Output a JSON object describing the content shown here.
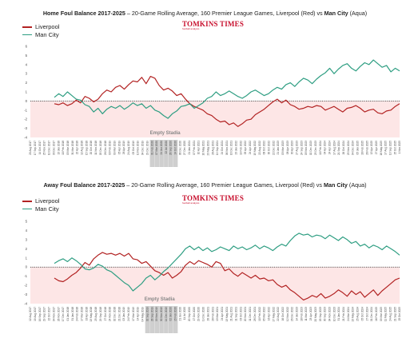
{
  "colors": {
    "liverpool": "#b22222",
    "mancity": "#2e9e82",
    "shade": "#fde6e6",
    "stadia": "#cfcfcf"
  },
  "logo": {
    "text": "TOMKINS TIMES",
    "tagline": "football analysis"
  },
  "chart_data": [
    {
      "type": "line",
      "title_bold": "Home Foul Balance 2017-2025",
      "title_rest": " – 20-Game Rolling Average, 160 Premier League Games, Liverpool (Red) vs ",
      "title_city": "Man City",
      "title_tail": " (Aqua)",
      "ylim": [
        -4,
        6
      ],
      "yticks": [
        "6",
        "5",
        "4",
        "3",
        "2",
        "1",
        "0",
        "-1",
        "-2",
        "-3",
        "-4"
      ],
      "annotation": "Empty Stadia",
      "stadia_range": [
        0.325,
        0.405
      ],
      "series": [
        {
          "name": "Liverpool",
          "color": "#b22222",
          "values": [
            -0.3,
            -0.4,
            -0.2,
            -0.5,
            -0.3,
            0.1,
            -0.2,
            0.5,
            0.3,
            -0.1,
            0.2,
            0.8,
            1.2,
            1.0,
            1.5,
            1.7,
            1.3,
            1.8,
            2.2,
            2.1,
            2.6,
            1.9,
            2.7,
            2.5,
            1.7,
            1.2,
            1.4,
            1.1,
            0.6,
            0.8,
            0.2,
            -0.3,
            -0.6,
            -0.8,
            -1.0,
            -1.4,
            -1.6,
            -2.0,
            -2.3,
            -2.2,
            -2.6,
            -2.4,
            -2.8,
            -2.5,
            -2.1,
            -2.0,
            -1.5,
            -1.2,
            -0.9,
            -0.5,
            -0.1,
            0.2,
            -0.2,
            0.1,
            -0.4,
            -0.6,
            -0.9,
            -0.8,
            -0.6,
            -0.7,
            -0.5,
            -0.6,
            -1.0,
            -0.8,
            -0.6,
            -0.9,
            -1.2,
            -0.8,
            -0.7,
            -0.5,
            -0.8,
            -1.2,
            -1.0,
            -0.9,
            -1.3,
            -1.4,
            -1.1,
            -1.0,
            -0.6,
            -0.3
          ]
        },
        {
          "name": "Man City",
          "color": "#2e9e82",
          "values": [
            0.4,
            0.8,
            0.5,
            1.0,
            0.6,
            0.2,
            0.1,
            -0.4,
            -0.6,
            -1.2,
            -0.8,
            -1.4,
            -0.9,
            -0.6,
            -0.8,
            -0.5,
            -0.9,
            -0.6,
            -0.2,
            -0.5,
            -0.3,
            -0.8,
            -0.5,
            -1.0,
            -1.2,
            -1.6,
            -1.9,
            -1.4,
            -1.1,
            -0.6,
            -0.5,
            -0.3,
            -0.8,
            -0.5,
            -0.2,
            0.3,
            0.5,
            1.0,
            0.6,
            0.8,
            1.1,
            0.8,
            0.5,
            0.3,
            0.6,
            1.0,
            1.2,
            0.9,
            0.6,
            0.8,
            1.2,
            1.5,
            1.3,
            1.8,
            2.0,
            1.6,
            2.1,
            2.5,
            2.3,
            1.9,
            2.4,
            2.8,
            3.1,
            3.6,
            3.0,
            3.5,
            3.9,
            4.1,
            3.6,
            3.3,
            3.8,
            4.2,
            4.0,
            4.5,
            4.1,
            3.7,
            3.9,
            3.2,
            3.6,
            3.3
          ]
        }
      ],
      "xticks": [
        "20 Aug 2017",
        "17 Sep 2017",
        "14 Oct 2017",
        "25 Nov 2017",
        "10 Dec 2017",
        "30 Dec 2017",
        "13 Jan 2018",
        "10 Feb 2018",
        "03 Mar 2018",
        "31 Mar 2018",
        "22 Apr 2018",
        "12 Aug 2018",
        "15 Sep 2018",
        "20 Oct 2018",
        "11 Nov 2018",
        "05 Dec 2018",
        "26 Dec 2018",
        "03 Feb 2019",
        "09 Mar 2019",
        "05 Apr 2019",
        "26 Apr 2019",
        "24 Aug 2019",
        "05 Oct 2019",
        "10 Nov 2019",
        "04 Dec 2019",
        "29 Dec 2019",
        "01 Feb 2020",
        "07 Mar 2020",
        "24 Jun 2020",
        "22 Jul 2020",
        "28 Sep 2020",
        "24 Oct 2020",
        "06 Dec 2020",
        "27 Dec 2020",
        "21 Jan 2021",
        "07 Feb 2021",
        "10 Apr 2021",
        "10 May 2021",
        "23 May 2021",
        "28 Aug 2021",
        "19 Sep 2021",
        "24 Oct 2021",
        "06 Nov 2021",
        "16 Dec 2021",
        "23 Jan 2022",
        "19 Feb 2022",
        "05 Apr 2022",
        "24 Apr 2022",
        "15 May 2022",
        "22 Aug 2022",
        "08 Oct 2022",
        "30 Oct 2022",
        "22 Dec 2022",
        "21 Jan 2023",
        "03 Mar 2023",
        "08 Apr 2023",
        "30 Apr 2023",
        "27 Aug 2023",
        "24 Sep 2023",
        "05 Nov 2023",
        "02 Dec 2023",
        "23 Dec 2023",
        "10 Feb 2024",
        "04 Apr 2024",
        "24 Apr 2024",
        "17 Aug 2024",
        "21 Sep 2024",
        "26 Oct 2024",
        "23 Nov 2024",
        "04 Dec 2024",
        "05 Jan 2025",
        "16 Feb 2025",
        "26 Feb 2025",
        "13 Apr 2025",
        "27 Apr 2025",
        "18 May 2025",
        "17 Aug 2025",
        "13 Sep 2025",
        "25 Oct 2025",
        "1 Nov 2025"
      ]
    },
    {
      "type": "line",
      "title_bold": "Away Foul Balance 2017-2025",
      "title_rest": " – 20-Game Rolling Average, 160 Premier League Games, Liverpool (Red) vs ",
      "title_city": "Man City",
      "title_tail": " (Aqua)",
      "ylim": [
        -4,
        5
      ],
      "yticks": [
        "5",
        "4",
        "3",
        "2",
        "1",
        "0",
        "-1",
        "-2",
        "-3",
        "-4"
      ],
      "annotation": "Empty Stadia",
      "stadia_range": [
        0.305,
        0.395
      ],
      "series": [
        {
          "name": "Liverpool",
          "color": "#b22222",
          "values": [
            -1.2,
            -1.5,
            -1.6,
            -1.3,
            -0.9,
            -0.6,
            -0.1,
            0.5,
            0.2,
            0.9,
            1.3,
            1.6,
            1.4,
            1.5,
            1.3,
            1.5,
            1.2,
            1.5,
            0.9,
            0.8,
            0.4,
            0.6,
            0.1,
            -0.4,
            -0.6,
            -0.9,
            -0.6,
            -1.2,
            -0.9,
            -0.5,
            0.2,
            0.6,
            0.3,
            0.7,
            0.5,
            0.3,
            0.0,
            0.6,
            0.4,
            -0.4,
            -0.2,
            -0.7,
            -1.0,
            -0.6,
            -0.9,
            -1.2,
            -0.9,
            -1.3,
            -1.2,
            -1.5,
            -1.4,
            -1.9,
            -2.2,
            -2.0,
            -2.5,
            -2.8,
            -3.2,
            -3.6,
            -3.4,
            -3.1,
            -3.3,
            -2.9,
            -3.4,
            -3.2,
            -2.9,
            -2.5,
            -2.8,
            -3.2,
            -2.6,
            -3.0,
            -2.7,
            -3.3,
            -2.9,
            -2.5,
            -3.1,
            -2.6,
            -2.2,
            -1.8,
            -1.4,
            -1.2
          ]
        },
        {
          "name": "Man City",
          "color": "#2e9e82",
          "values": [
            0.4,
            0.7,
            0.9,
            0.6,
            1.0,
            0.7,
            0.3,
            -0.2,
            -0.3,
            -0.1,
            0.3,
            0.1,
            -0.3,
            -0.5,
            -0.9,
            -1.3,
            -1.7,
            -2.0,
            -2.6,
            -2.2,
            -1.8,
            -1.2,
            -0.9,
            -1.4,
            -1.0,
            -0.5,
            -0.1,
            0.4,
            0.9,
            1.4,
            2.0,
            2.3,
            1.9,
            2.2,
            1.8,
            2.1,
            1.7,
            1.9,
            2.2,
            2.0,
            1.8,
            2.3,
            2.0,
            2.2,
            1.9,
            2.1,
            2.4,
            2.0,
            2.3,
            2.1,
            1.8,
            2.2,
            2.5,
            2.3,
            2.9,
            3.4,
            3.7,
            3.5,
            3.6,
            3.3,
            3.5,
            3.4,
            3.1,
            3.5,
            3.2,
            2.9,
            3.3,
            3.0,
            2.6,
            2.8,
            2.3,
            2.5,
            2.1,
            2.4,
            2.2,
            1.9,
            2.3,
            2.0,
            1.7,
            1.3
          ]
        }
      ],
      "xticks": [
        "12 Aug 2017",
        "19 Aug 2017",
        "16 Sep 2017",
        "29 Sep 2017",
        "22 Oct 2017",
        "04 Nov 2017",
        "26 Nov 2017",
        "17 Dec 2017",
        "01 Jan 2018",
        "31 Jan 2018",
        "24 Feb 2018",
        "17 Mar 2018",
        "18 Apr 2018",
        "13 May 2018",
        "25 Aug 2018",
        "29 Sep 2018",
        "27 Oct 2018",
        "24 Nov 2018",
        "02 Dec 2018",
        "21 Dec 2018",
        "03 Jan 2019",
        "24 Feb 2019",
        "17 Mar 2019",
        "14 Apr 2019",
        "04 May 2019",
        "02 Sep 2019",
        "28 Sep 2019",
        "09 Nov 2019",
        "30 Nov 2019",
        "14 Dec 2019",
        "02 Jan 2020",
        "15 Feb 2020",
        "21 Jun 2020",
        "11 Jul 2020",
        "20 Sep 2020",
        "17 Oct 2020",
        "29 Nov 2020",
        "19 Dec 2020",
        "28 Jan 2021",
        "28 Feb 2021",
        "13 Mar 2021",
        "24 Apr 2021",
        "13 May 2021",
        "21 Aug 2021",
        "11 Sep 2021",
        "03 Oct 2021",
        "20 Nov 2021",
        "11 Dec 2021",
        "28 Dec 2021",
        "10 Feb 2022",
        "05 Mar 2022",
        "16 Apr 2022",
        "17 May 2022",
        "22 Aug 2022",
        "16 Oct 2022",
        "12 Nov 2022",
        "26 Dec 2022",
        "14 Jan 2023",
        "18 Feb 2023",
        "11 Mar 2023",
        "23 Apr 2023",
        "20 May 2023",
        "03 Sep 2023",
        "30 Sep 2023",
        "04 Nov 2023",
        "10 Dec 2023",
        "31 Jan 2024",
        "21 Feb 2024",
        "24 Mar 2024",
        "13 May 2024",
        "25 Aug 2024",
        "05 Oct 2024",
        "27 Oct 2024",
        "01 Dec 2024",
        "16 Feb 2025",
        "09 Mar 2025",
        "11 May 2025",
        "24 Aug 2025",
        "21 Sep 2025",
        "25 Oct 2025"
      ]
    }
  ]
}
